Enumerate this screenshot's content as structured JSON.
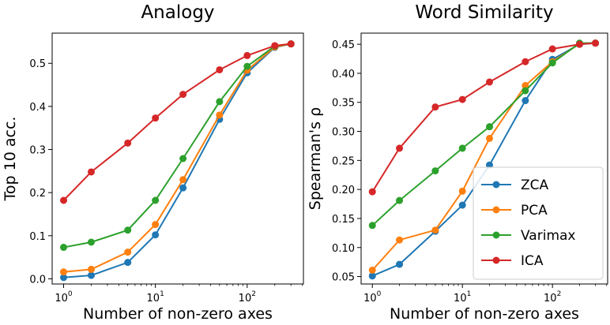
{
  "series_colors": {
    "ZCA": "#1f77b4",
    "PCA": "#ff7f0e",
    "Varimax": "#2ca02c",
    "ICA": "#d62728"
  },
  "chart_data": [
    {
      "type": "line",
      "title": "Analogy",
      "xlabel": "Number of non-zero axes",
      "ylabel": "Top 10 acc.",
      "xscale": "log",
      "x": [
        1,
        2,
        5,
        10,
        20,
        50,
        100,
        200,
        300
      ],
      "xlim": [
        0.75,
        410
      ],
      "ylim": [
        -0.012,
        0.57
      ],
      "xticks": [
        {
          "value": 1,
          "base": "10",
          "exp": "0"
        },
        {
          "value": 10,
          "base": "10",
          "exp": "1"
        },
        {
          "value": 100,
          "base": "10",
          "exp": "2"
        }
      ],
      "yticks": [
        0.0,
        0.1,
        0.2,
        0.3,
        0.4,
        0.5
      ],
      "ytick_labels": [
        "0.0",
        "0.1",
        "0.2",
        "0.3",
        "0.4",
        "0.5"
      ],
      "series": [
        {
          "name": "ZCA",
          "values": [
            0.003,
            0.008,
            0.038,
            0.102,
            0.211,
            0.37,
            0.478,
            0.537,
            0.545
          ]
        },
        {
          "name": "PCA",
          "values": [
            0.016,
            0.022,
            0.062,
            0.126,
            0.23,
            0.38,
            0.484,
            0.538,
            0.545
          ]
        },
        {
          "name": "Varimax",
          "values": [
            0.073,
            0.085,
            0.113,
            0.182,
            0.279,
            0.411,
            0.493,
            0.54,
            0.545
          ]
        },
        {
          "name": "ICA",
          "values": [
            0.182,
            0.248,
            0.315,
            0.373,
            0.428,
            0.485,
            0.518,
            0.541,
            0.545
          ]
        }
      ]
    },
    {
      "type": "line",
      "title": "Word Similarity",
      "xlabel": "Number of non-zero axes",
      "ylabel": "Spearman's ρ",
      "xscale": "log",
      "x": [
        1,
        2,
        5,
        10,
        20,
        50,
        100,
        200,
        300
      ],
      "xlim": [
        0.75,
        410
      ],
      "ylim": [
        0.0372,
        0.4692
      ],
      "xticks": [
        {
          "value": 1,
          "base": "10",
          "exp": "0"
        },
        {
          "value": 10,
          "base": "10",
          "exp": "1"
        },
        {
          "value": 100,
          "base": "10",
          "exp": "2"
        }
      ],
      "yticks": [
        0.05,
        0.1,
        0.15,
        0.2,
        0.25,
        0.3,
        0.35,
        0.4,
        0.45
      ],
      "ytick_labels": [
        "0.05",
        "0.10",
        "0.15",
        "0.20",
        "0.25",
        "0.30",
        "0.35",
        "0.40",
        "0.45"
      ],
      "legend": {
        "position": "lower-right",
        "entries": [
          "ZCA",
          "PCA",
          "Varimax",
          "ICA"
        ]
      },
      "series": [
        {
          "name": "ZCA",
          "values": [
            0.051,
            0.071,
            0.128,
            0.173,
            0.242,
            0.353,
            0.424,
            0.45,
            0.452
          ]
        },
        {
          "name": "PCA",
          "values": [
            0.061,
            0.113,
            0.13,
            0.197,
            0.288,
            0.379,
            0.42,
            0.451,
            0.452
          ]
        },
        {
          "name": "Varimax",
          "values": [
            0.138,
            0.181,
            0.232,
            0.271,
            0.308,
            0.37,
            0.418,
            0.452,
            0.452
          ]
        },
        {
          "name": "ICA",
          "values": [
            0.196,
            0.271,
            0.342,
            0.355,
            0.385,
            0.42,
            0.442,
            0.45,
            0.452
          ]
        }
      ]
    }
  ]
}
